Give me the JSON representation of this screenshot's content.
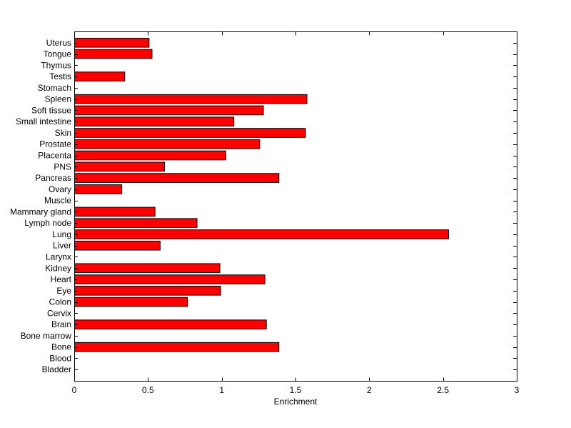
{
  "chart_data": {
    "type": "bar",
    "orientation": "horizontal",
    "categories": [
      "Bladder",
      "Blood",
      "Bone",
      "Bone marrow",
      "Brain",
      "Cervix",
      "Colon",
      "Eye",
      "Heart",
      "Kidney",
      "Larynx",
      "Liver",
      "Lung",
      "Lymph node",
      "Mammary gland",
      "Muscle",
      "Ovary",
      "Pancreas",
      "PNS",
      "Placenta",
      "Prostate",
      "Skin",
      "Small intestine",
      "Soft tissue",
      "Spleen",
      "Stomach",
      "Testis",
      "Thymus",
      "Tongue",
      "Uterus"
    ],
    "values": [
      0,
      0,
      1.385,
      0,
      1.3,
      0,
      0.765,
      0.99,
      1.29,
      0.985,
      0,
      0.58,
      2.535,
      0.83,
      0.545,
      0,
      0.32,
      1.385,
      0.61,
      1.025,
      1.255,
      1.565,
      1.08,
      1.28,
      1.575,
      0,
      0.34,
      0,
      0.525,
      0.505
    ],
    "xlabel": "Enrichment",
    "ylabel": "",
    "title": "",
    "xlim": [
      0,
      3
    ],
    "xticks": [
      "0",
      "0.5",
      "1",
      "1.5",
      "2",
      "2.5",
      "3"
    ],
    "grid": false,
    "bar_color": "#ff0000",
    "edge_color": "#000000"
  }
}
